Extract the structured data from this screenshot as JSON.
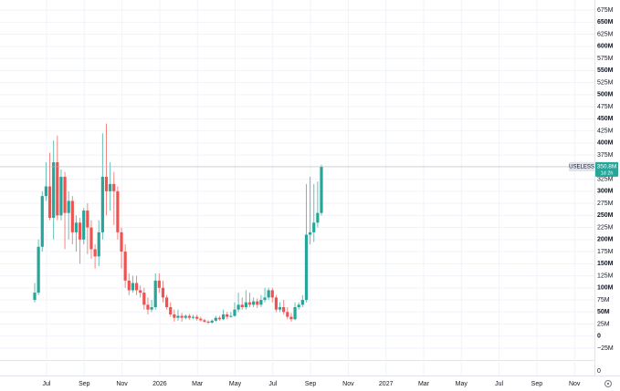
{
  "chart_data": {
    "type": "candlestick",
    "series_name": "USELESS",
    "price_label": "350.8M",
    "countdown": "1d 2h",
    "up_color": "#26a69a",
    "down_color": "#ef5350",
    "grid": true,
    "ylim": [
      -40,
      696
    ],
    "yticks": [
      {
        "value": 675,
        "label": "675M"
      },
      {
        "value": 650,
        "label": "650M"
      },
      {
        "value": 625,
        "label": "625M"
      },
      {
        "value": 600,
        "label": "600M"
      },
      {
        "value": 575,
        "label": "575M"
      },
      {
        "value": 550,
        "label": "550M"
      },
      {
        "value": 525,
        "label": "525M"
      },
      {
        "value": 500,
        "label": "500M"
      },
      {
        "value": 475,
        "label": "475M"
      },
      {
        "value": 450,
        "label": "450M"
      },
      {
        "value": 425,
        "label": "425M"
      },
      {
        "value": 400,
        "label": "400M"
      },
      {
        "value": 375,
        "label": "375M"
      },
      {
        "value": 325,
        "label": "325M"
      },
      {
        "value": 300,
        "label": "300M"
      },
      {
        "value": 275,
        "label": "275M"
      },
      {
        "value": 250,
        "label": "250M"
      },
      {
        "value": 225,
        "label": "225M"
      },
      {
        "value": 200,
        "label": "200M"
      },
      {
        "value": 175,
        "label": "175M"
      },
      {
        "value": 150,
        "label": "150M"
      },
      {
        "value": 125,
        "label": "125M"
      },
      {
        "value": 100,
        "label": "100M"
      },
      {
        "value": 75,
        "label": "75M"
      },
      {
        "value": 50,
        "label": "50M"
      },
      {
        "value": 25,
        "label": "25M"
      },
      0,
      {
        "value": -25,
        "label": "−25M"
      }
    ],
    "volume_ticks": [
      0
    ],
    "x_labels": [
      "Jul",
      "Sep",
      "Nov",
      "2026",
      "Mar",
      "May",
      "Jul",
      "Sep",
      "Nov",
      "2027",
      "Mar",
      "May",
      "Jul",
      "Sep",
      "Nov"
    ],
    "open": [
      75,
      90,
      185,
      290,
      310,
      245,
      360,
      250,
      330,
      255,
      280,
      215,
      235,
      200,
      260,
      225,
      180,
      165,
      215,
      330,
      300,
      315,
      300,
      215,
      175,
      115,
      95,
      110,
      95,
      90,
      65,
      55,
      60,
      115,
      100,
      80,
      60,
      45,
      38,
      42,
      38,
      42,
      38,
      40,
      36,
      33,
      30,
      28,
      32,
      38,
      35,
      45,
      40,
      42,
      55,
      65,
      60,
      70,
      65,
      72,
      65,
      75,
      80,
      95,
      80,
      55,
      60,
      50,
      40,
      35,
      60,
      65,
      75,
      210,
      215,
      235,
      255
    ],
    "high": [
      110,
      200,
      300,
      360,
      380,
      405,
      415,
      345,
      340,
      300,
      290,
      250,
      245,
      265,
      275,
      240,
      190,
      240,
      420,
      440,
      360,
      340,
      310,
      225,
      190,
      130,
      125,
      125,
      105,
      100,
      80,
      75,
      130,
      130,
      115,
      85,
      70,
      55,
      55,
      48,
      45,
      46,
      44,
      44,
      40,
      36,
      33,
      35,
      42,
      42,
      55,
      50,
      50,
      70,
      90,
      80,
      95,
      90,
      80,
      78,
      85,
      100,
      100,
      100,
      85,
      70,
      75,
      60,
      48,
      70,
      70,
      85,
      315,
      330,
      315,
      320,
      355
    ],
    "low": [
      70,
      85,
      175,
      280,
      240,
      200,
      240,
      240,
      180,
      200,
      190,
      175,
      150,
      190,
      170,
      160,
      140,
      145,
      200,
      250,
      260,
      230,
      200,
      140,
      100,
      85,
      90,
      85,
      80,
      55,
      45,
      50,
      55,
      90,
      70,
      55,
      40,
      30,
      32,
      30,
      35,
      34,
      35,
      32,
      30,
      28,
      25,
      26,
      30,
      32,
      33,
      35,
      38,
      40,
      50,
      55,
      55,
      60,
      60,
      58,
      60,
      70,
      75,
      70,
      50,
      50,
      45,
      35,
      30,
      33,
      55,
      60,
      70,
      190,
      195,
      225,
      250
    ],
    "close": [
      90,
      185,
      290,
      310,
      245,
      360,
      250,
      330,
      255,
      280,
      215,
      235,
      200,
      260,
      225,
      180,
      165,
      215,
      330,
      300,
      315,
      300,
      215,
      175,
      115,
      95,
      110,
      95,
      90,
      65,
      55,
      60,
      115,
      100,
      80,
      60,
      45,
      38,
      42,
      38,
      42,
      38,
      40,
      36,
      33,
      30,
      28,
      32,
      38,
      35,
      45,
      40,
      42,
      55,
      65,
      60,
      70,
      65,
      72,
      65,
      75,
      80,
      95,
      80,
      55,
      60,
      50,
      40,
      35,
      60,
      65,
      75,
      210,
      215,
      235,
      255,
      350.8
    ]
  }
}
